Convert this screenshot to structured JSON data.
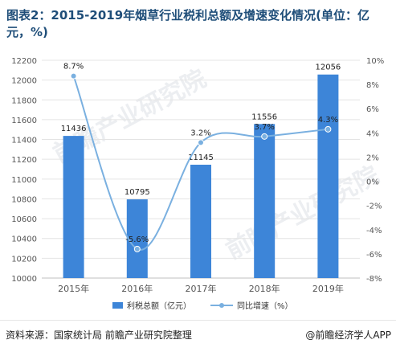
{
  "title": "图表2：2015-2019年烟草行业税利总额及增速变化情况(单位：亿元，%)",
  "source_label": "资料来源：国家统计局  前瞻产业研究院整理",
  "brand_label": "@前瞻经济学人APP",
  "watermark_text": "前瞻产业研究院",
  "colors": {
    "bar": "#3d85d8",
    "line": "#7ab0e0",
    "axis_text": "#555555",
    "grid": "#e4e4e4",
    "title": "#1f4e79"
  },
  "chart_data": {
    "type": "bar+line",
    "categories": [
      "2015年",
      "2016年",
      "2017年",
      "2018年",
      "2019年"
    ],
    "series": [
      {
        "name": "利税总额（亿元）",
        "type": "bar",
        "axis": "left",
        "values": [
          11436,
          10795,
          11145,
          11556,
          12056
        ],
        "labels": [
          "11436",
          "10795",
          "11145",
          "11556",
          "12056"
        ]
      },
      {
        "name": "同比增速（%）",
        "type": "line",
        "axis": "right",
        "values": [
          8.7,
          -5.6,
          3.2,
          3.7,
          4.3
        ],
        "labels": [
          "8.7%",
          "-5.6%",
          "3.2%",
          "3.7%",
          "4.3%"
        ]
      }
    ],
    "y_left": {
      "range": [
        10000,
        12200
      ],
      "ticks": [
        10000,
        10200,
        10400,
        10600,
        10800,
        11000,
        11200,
        11400,
        11600,
        11800,
        12000,
        12200
      ],
      "tick_labels": [
        "10000",
        "10200",
        "10400",
        "10600",
        "10800",
        "11000",
        "11200",
        "11400",
        "11600",
        "11800",
        "12000",
        "12200"
      ]
    },
    "y_right": {
      "range": [
        -8,
        10
      ],
      "ticks": [
        -8,
        -6,
        -4,
        -2,
        0,
        2,
        4,
        6,
        8,
        10
      ],
      "tick_labels": [
        "-8%",
        "-6%",
        "-4%",
        "-2%",
        "0%",
        "2%",
        "4%",
        "6%",
        "8%",
        "10%"
      ]
    },
    "grid": true,
    "legend_position": "bottom"
  }
}
